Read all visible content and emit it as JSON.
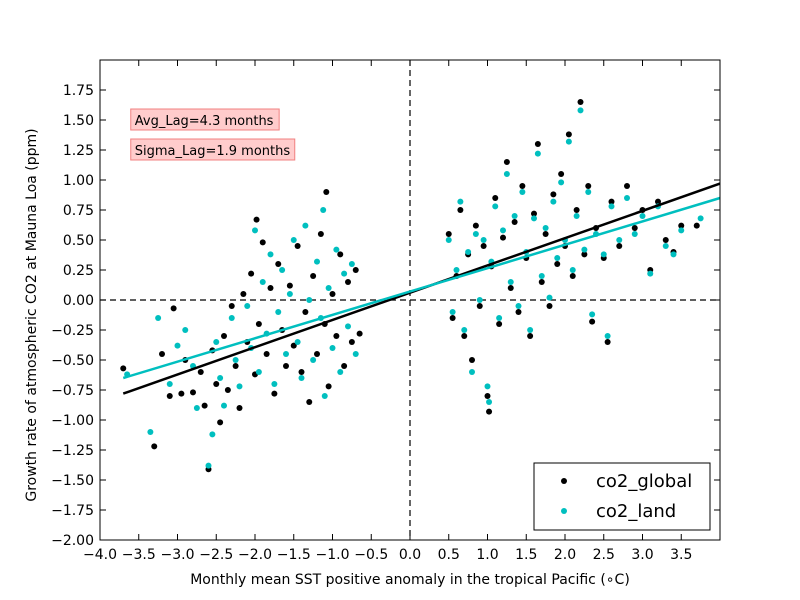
{
  "chart_data": {
    "type": "scatter",
    "xlabel": "Monthly mean SST positive anomaly in the tropical Pacific (",
    "xlabel_unit": "∘C",
    "xlabel_close": ")",
    "ylabel": "Growth rate of atmospheric CO2 at Mauna Loa (ppm)",
    "xlim": [
      -4.0,
      4.0
    ],
    "ylim": [
      -2.0,
      2.0
    ],
    "x_ticks": [
      "−4.0",
      "−3.5",
      "−3.0",
      "−2.5",
      "−2.0",
      "−1.5",
      "−1.0",
      "−0.5",
      "0.0",
      "0.5",
      "1.0",
      "1.5",
      "2.0",
      "2.5",
      "3.0",
      "3.5"
    ],
    "x_tick_values": [
      -4.0,
      -3.5,
      -3.0,
      -2.5,
      -2.0,
      -1.5,
      -1.0,
      -0.5,
      0.0,
      0.5,
      1.0,
      1.5,
      2.0,
      2.5,
      3.0,
      3.5
    ],
    "y_ticks": [
      "−2.00",
      "−1.75",
      "−1.50",
      "−1.25",
      "−1.00",
      "−0.75",
      "−0.50",
      "−0.25",
      "0.00",
      "0.25",
      "0.50",
      "0.75",
      "1.00",
      "1.25",
      "1.50",
      "1.75"
    ],
    "y_tick_values": [
      -2.0,
      -1.75,
      -1.5,
      -1.25,
      -1.0,
      -0.75,
      -0.5,
      -0.25,
      0.0,
      0.25,
      0.5,
      0.75,
      1.0,
      1.25,
      1.5,
      1.75
    ],
    "reference_lines": {
      "x": 0.0,
      "y": 0.0,
      "style": "dashed"
    },
    "annotations": [
      {
        "text": "Avg_Lag=4.3 months",
        "x": -3.5,
        "y": 1.5
      },
      {
        "text": "Sigma_Lag=1.9 months",
        "x": -3.5,
        "y": 1.25
      }
    ],
    "legend_position": "bottom-right",
    "series": [
      {
        "name": "co2_global",
        "color": "#000000",
        "fit": {
          "x": [
            -3.7,
            4.0
          ],
          "y": [
            -0.78,
            0.97
          ]
        },
        "points": [
          [
            -3.7,
            -0.57
          ],
          [
            -3.3,
            -1.22
          ],
          [
            -3.2,
            -0.45
          ],
          [
            -3.1,
            -0.8
          ],
          [
            -3.05,
            -0.07
          ],
          [
            -2.95,
            -0.78
          ],
          [
            -2.9,
            -0.5
          ],
          [
            -2.8,
            -0.77
          ],
          [
            -2.7,
            -0.6
          ],
          [
            -2.65,
            -0.88
          ],
          [
            -2.6,
            -1.41
          ],
          [
            -2.55,
            -0.42
          ],
          [
            -2.5,
            -0.7
          ],
          [
            -2.45,
            -1.02
          ],
          [
            -2.4,
            -0.3
          ],
          [
            -2.35,
            -0.75
          ],
          [
            -2.3,
            -0.05
          ],
          [
            -2.25,
            -0.55
          ],
          [
            -2.2,
            -0.9
          ],
          [
            -2.15,
            0.05
          ],
          [
            -2.1,
            -0.35
          ],
          [
            -2.05,
            0.22
          ],
          [
            -2.0,
            -0.62
          ],
          [
            -1.98,
            0.67
          ],
          [
            -1.95,
            -0.2
          ],
          [
            -1.9,
            0.48
          ],
          [
            -1.85,
            -0.45
          ],
          [
            -1.8,
            0.1
          ],
          [
            -1.75,
            -0.78
          ],
          [
            -1.7,
            0.3
          ],
          [
            -1.65,
            -0.25
          ],
          [
            -1.6,
            -0.55
          ],
          [
            -1.55,
            0.12
          ],
          [
            -1.5,
            -0.38
          ],
          [
            -1.45,
            0.45
          ],
          [
            -1.4,
            -0.6
          ],
          [
            -1.35,
            -0.1
          ],
          [
            -1.3,
            -0.85
          ],
          [
            -1.25,
            0.2
          ],
          [
            -1.2,
            -0.45
          ],
          [
            -1.15,
            0.55
          ],
          [
            -1.1,
            -0.2
          ],
          [
            -1.08,
            0.9
          ],
          [
            -1.05,
            -0.72
          ],
          [
            -1.0,
            0.05
          ],
          [
            -0.95,
            -0.3
          ],
          [
            -0.9,
            0.38
          ],
          [
            -0.85,
            -0.55
          ],
          [
            -0.8,
            0.15
          ],
          [
            -0.75,
            -0.35
          ],
          [
            -0.7,
            0.25
          ],
          [
            -0.65,
            -0.28
          ],
          [
            0.5,
            0.55
          ],
          [
            0.55,
            -0.15
          ],
          [
            0.6,
            0.2
          ],
          [
            0.65,
            0.75
          ],
          [
            0.7,
            -0.3
          ],
          [
            0.75,
            0.38
          ],
          [
            0.8,
            -0.5
          ],
          [
            0.85,
            0.62
          ],
          [
            0.9,
            -0.05
          ],
          [
            0.95,
            0.45
          ],
          [
            1.0,
            -0.8
          ],
          [
            1.02,
            -0.93
          ],
          [
            1.05,
            0.28
          ],
          [
            1.1,
            0.85
          ],
          [
            1.15,
            -0.2
          ],
          [
            1.2,
            0.52
          ],
          [
            1.25,
            1.15
          ],
          [
            1.3,
            0.1
          ],
          [
            1.35,
            0.65
          ],
          [
            1.4,
            -0.1
          ],
          [
            1.45,
            0.95
          ],
          [
            1.5,
            0.35
          ],
          [
            1.55,
            -0.3
          ],
          [
            1.6,
            0.72
          ],
          [
            1.65,
            1.3
          ],
          [
            1.7,
            0.15
          ],
          [
            1.75,
            0.55
          ],
          [
            1.8,
            -0.05
          ],
          [
            1.85,
            0.88
          ],
          [
            1.9,
            0.3
          ],
          [
            1.95,
            1.05
          ],
          [
            2.0,
            0.45
          ],
          [
            2.05,
            1.38
          ],
          [
            2.1,
            0.2
          ],
          [
            2.15,
            0.75
          ],
          [
            2.2,
            1.65
          ],
          [
            2.25,
            0.38
          ],
          [
            2.3,
            0.95
          ],
          [
            2.35,
            -0.18
          ],
          [
            2.4,
            0.6
          ],
          [
            2.5,
            0.35
          ],
          [
            2.55,
            -0.35
          ],
          [
            2.6,
            0.82
          ],
          [
            2.7,
            0.45
          ],
          [
            2.8,
            0.95
          ],
          [
            2.9,
            0.6
          ],
          [
            3.0,
            0.75
          ],
          [
            3.1,
            0.25
          ],
          [
            3.2,
            0.82
          ],
          [
            3.3,
            0.5
          ],
          [
            3.4,
            0.4
          ],
          [
            3.5,
            0.62
          ],
          [
            3.7,
            0.62
          ]
        ]
      },
      {
        "name": "co2_land",
        "color": "#00bfbf",
        "fit": {
          "x": [
            -3.7,
            4.0
          ],
          "y": [
            -0.65,
            0.85
          ]
        },
        "points": [
          [
            -3.65,
            -0.62
          ],
          [
            -3.35,
            -1.1
          ],
          [
            -3.25,
            -0.15
          ],
          [
            -3.1,
            -0.7
          ],
          [
            -3.0,
            -0.38
          ],
          [
            -2.9,
            -0.25
          ],
          [
            -2.8,
            -0.55
          ],
          [
            -2.75,
            -0.9
          ],
          [
            -2.6,
            -1.38
          ],
          [
            -2.55,
            -1.12
          ],
          [
            -2.5,
            -0.35
          ],
          [
            -2.45,
            -0.65
          ],
          [
            -2.4,
            -0.88
          ],
          [
            -2.3,
            -0.15
          ],
          [
            -2.25,
            -0.5
          ],
          [
            -2.2,
            -0.72
          ],
          [
            -2.1,
            -0.05
          ],
          [
            -2.05,
            -0.4
          ],
          [
            -2.0,
            0.58
          ],
          [
            -1.95,
            -0.6
          ],
          [
            -1.9,
            0.15
          ],
          [
            -1.85,
            -0.28
          ],
          [
            -1.8,
            0.38
          ],
          [
            -1.75,
            -0.7
          ],
          [
            -1.7,
            -0.1
          ],
          [
            -1.65,
            0.25
          ],
          [
            -1.6,
            -0.45
          ],
          [
            -1.55,
            0.05
          ],
          [
            -1.5,
            0.5
          ],
          [
            -1.45,
            -0.35
          ],
          [
            -1.4,
            -0.65
          ],
          [
            -1.35,
            0.62
          ],
          [
            -1.3,
            0.0
          ],
          [
            -1.25,
            -0.5
          ],
          [
            -1.2,
            0.32
          ],
          [
            -1.15,
            -0.15
          ],
          [
            -1.12,
            0.75
          ],
          [
            -1.1,
            -0.8
          ],
          [
            -1.05,
            0.1
          ],
          [
            -1.0,
            -0.4
          ],
          [
            -0.95,
            0.42
          ],
          [
            -0.9,
            -0.6
          ],
          [
            -0.85,
            0.22
          ],
          [
            -0.8,
            -0.22
          ],
          [
            -0.75,
            0.3
          ],
          [
            -0.7,
            -0.45
          ],
          [
            0.5,
            0.5
          ],
          [
            0.55,
            -0.1
          ],
          [
            0.6,
            0.25
          ],
          [
            0.65,
            0.82
          ],
          [
            0.7,
            -0.25
          ],
          [
            0.75,
            0.4
          ],
          [
            0.8,
            -0.6
          ],
          [
            0.85,
            0.55
          ],
          [
            0.9,
            0.0
          ],
          [
            0.95,
            0.5
          ],
          [
            1.0,
            -0.72
          ],
          [
            1.02,
            -0.85
          ],
          [
            1.05,
            0.32
          ],
          [
            1.1,
            0.78
          ],
          [
            1.15,
            -0.15
          ],
          [
            1.2,
            0.58
          ],
          [
            1.25,
            1.05
          ],
          [
            1.3,
            0.15
          ],
          [
            1.35,
            0.7
          ],
          [
            1.4,
            -0.05
          ],
          [
            1.45,
            0.9
          ],
          [
            1.5,
            0.4
          ],
          [
            1.55,
            -0.25
          ],
          [
            1.6,
            0.68
          ],
          [
            1.65,
            1.22
          ],
          [
            1.7,
            0.2
          ],
          [
            1.75,
            0.6
          ],
          [
            1.8,
            0.02
          ],
          [
            1.85,
            0.82
          ],
          [
            1.9,
            0.35
          ],
          [
            1.95,
            0.98
          ],
          [
            2.0,
            0.5
          ],
          [
            2.05,
            1.32
          ],
          [
            2.1,
            0.25
          ],
          [
            2.15,
            0.7
          ],
          [
            2.2,
            1.58
          ],
          [
            2.25,
            0.42
          ],
          [
            2.3,
            0.9
          ],
          [
            2.35,
            -0.12
          ],
          [
            2.4,
            0.55
          ],
          [
            2.5,
            0.38
          ],
          [
            2.55,
            -0.3
          ],
          [
            2.6,
            0.78
          ],
          [
            2.7,
            0.5
          ],
          [
            2.8,
            0.85
          ],
          [
            2.9,
            0.55
          ],
          [
            3.0,
            0.7
          ],
          [
            3.1,
            0.22
          ],
          [
            3.2,
            0.78
          ],
          [
            3.3,
            0.45
          ],
          [
            3.4,
            0.38
          ],
          [
            3.5,
            0.58
          ],
          [
            3.75,
            0.68
          ]
        ]
      }
    ]
  }
}
